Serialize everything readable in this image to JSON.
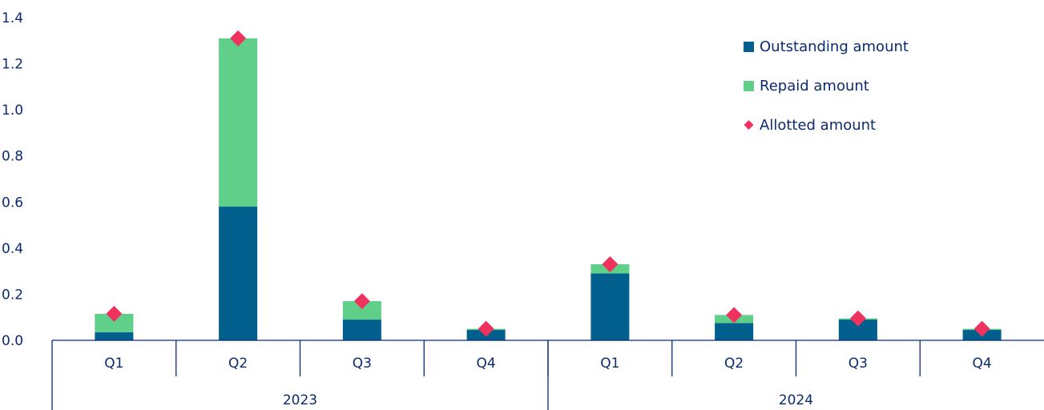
{
  "chart_data": {
    "type": "bar",
    "stacked": true,
    "title": "",
    "xlabel": "",
    "ylabel": "",
    "ylim": [
      0,
      1.4
    ],
    "yticks": [
      "0.0",
      "0.2",
      "0.4",
      "0.6",
      "0.8",
      "1.0",
      "1.2",
      "1.4"
    ],
    "grid": false,
    "legend_position": "top-right",
    "categories": [
      "Q1",
      "Q2",
      "Q3",
      "Q4",
      "Q1",
      "Q2",
      "Q3",
      "Q4"
    ],
    "groups": [
      {
        "label": "2023",
        "span": 4
      },
      {
        "label": "2024",
        "span": 4
      }
    ],
    "series": [
      {
        "name": "Outstanding amount",
        "kind": "bar",
        "color": "#005f8d",
        "values": [
          0.035,
          0.58,
          0.09,
          0.045,
          0.29,
          0.075,
          0.09,
          0.045
        ]
      },
      {
        "name": "Repaid amount",
        "kind": "bar",
        "color": "#5fcf8a",
        "values": [
          0.08,
          0.73,
          0.08,
          0.005,
          0.04,
          0.035,
          0.005,
          0.005
        ]
      },
      {
        "name": "Allotted amount",
        "kind": "marker",
        "marker": "diamond",
        "color": "#f0325f",
        "values": [
          0.115,
          1.31,
          0.17,
          0.05,
          0.33,
          0.11,
          0.095,
          0.05
        ]
      }
    ]
  }
}
